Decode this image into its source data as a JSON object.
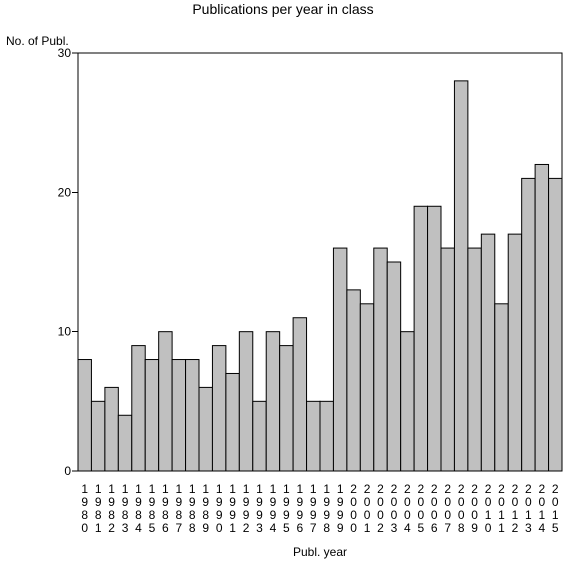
{
  "chart_data": {
    "type": "bar",
    "title": "Publications per year in class",
    "xlabel": "Publ. year",
    "ylabel": "No. of Publ.",
    "ylim": [
      0,
      30
    ],
    "yticks": [
      "0",
      "10",
      "20",
      "30"
    ],
    "grid": false,
    "categories": [
      "1980",
      "1981",
      "1982",
      "1983",
      "1984",
      "1985",
      "1986",
      "1987",
      "1988",
      "1989",
      "1990",
      "1991",
      "1992",
      "1993",
      "1994",
      "1995",
      "1996",
      "1997",
      "1998",
      "1999",
      "2000",
      "2001",
      "2002",
      "2003",
      "2004",
      "2005",
      "2006",
      "2007",
      "2008",
      "2009",
      "2010",
      "2011",
      "2012",
      "2013",
      "2014",
      "2015"
    ],
    "values": [
      8,
      5,
      6,
      4,
      9,
      8,
      10,
      8,
      8,
      6,
      9,
      7,
      10,
      5,
      10,
      9,
      11,
      5,
      5,
      16,
      13,
      12,
      16,
      15,
      10,
      19,
      19,
      16,
      28,
      16,
      17,
      12,
      17,
      21,
      22,
      21
    ],
    "bar_color": "#c0c0c0"
  }
}
